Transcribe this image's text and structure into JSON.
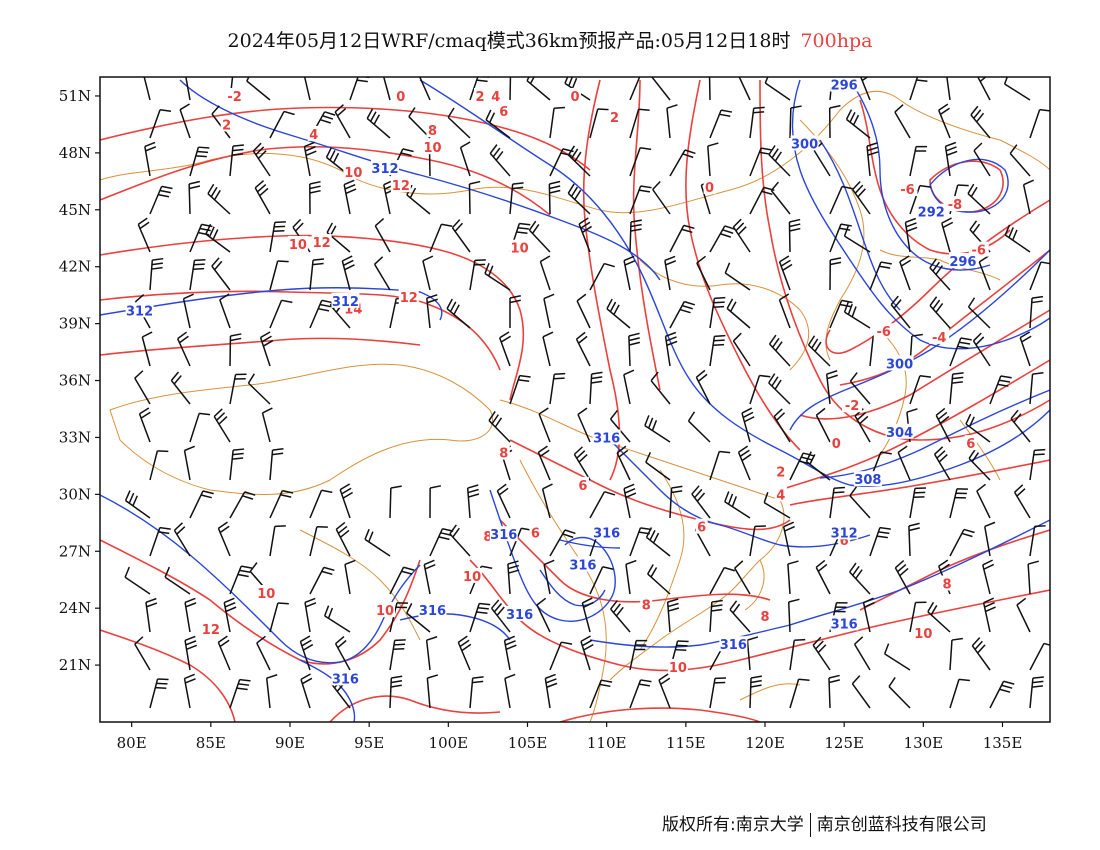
{
  "title": {
    "main": "2024年05月12日WRF/cmaq模式36km预报产品:05月12日18时",
    "level": "700hpa"
  },
  "colors": {
    "temperature": "#e8413e",
    "height": "#2a45d8",
    "coastline": "#d9923a",
    "wind": "#111111",
    "frame": "#111111"
  },
  "axes": {
    "lon_range": [
      78,
      138
    ],
    "lat_range": [
      18,
      52
    ],
    "lon_ticks": [
      {
        "value": 80,
        "label": "80E"
      },
      {
        "value": 85,
        "label": "85E"
      },
      {
        "value": 90,
        "label": "90E"
      },
      {
        "value": 95,
        "label": "95E"
      },
      {
        "value": 100,
        "label": "100E"
      },
      {
        "value": 105,
        "label": "105E"
      },
      {
        "value": 110,
        "label": "110E"
      },
      {
        "value": 115,
        "label": "115E"
      },
      {
        "value": 120,
        "label": "120E"
      },
      {
        "value": 125,
        "label": "125E"
      },
      {
        "value": 130,
        "label": "130E"
      },
      {
        "value": 135,
        "label": "135E"
      }
    ],
    "lat_ticks": [
      {
        "value": 51,
        "label": "51N"
      },
      {
        "value": 48,
        "label": "48N"
      },
      {
        "value": 45,
        "label": "45N"
      },
      {
        "value": 42,
        "label": "42N"
      },
      {
        "value": 39,
        "label": "39N"
      },
      {
        "value": 36,
        "label": "36N"
      },
      {
        "value": 33,
        "label": "33N"
      },
      {
        "value": 30,
        "label": "30N"
      },
      {
        "value": 27,
        "label": "27N"
      },
      {
        "value": 24,
        "label": "24N"
      },
      {
        "value": 21,
        "label": "21N"
      }
    ]
  },
  "temperature_labels": [
    {
      "lon": 86.5,
      "lat": 51,
      "text": "-2"
    },
    {
      "lon": 91.5,
      "lat": 49,
      "text": "4"
    },
    {
      "lon": 86,
      "lat": 49.5,
      "text": "2"
    },
    {
      "lon": 94,
      "lat": 47,
      "text": "10"
    },
    {
      "lon": 97,
      "lat": 46.3,
      "text": "12"
    },
    {
      "lon": 90.5,
      "lat": 43.2,
      "text": "10"
    },
    {
      "lon": 92,
      "lat": 43.3,
      "text": "12"
    },
    {
      "lon": 94,
      "lat": 39.8,
      "text": "14"
    },
    {
      "lon": 97.5,
      "lat": 40.4,
      "text": "12"
    },
    {
      "lon": 99,
      "lat": 49.2,
      "text": "8"
    },
    {
      "lon": 99,
      "lat": 48.3,
      "text": "10"
    },
    {
      "lon": 97,
      "lat": 51,
      "text": "0"
    },
    {
      "lon": 102,
      "lat": 51,
      "text": "2"
    },
    {
      "lon": 103,
      "lat": 51,
      "text": "4"
    },
    {
      "lon": 103.5,
      "lat": 50.2,
      "text": "6"
    },
    {
      "lon": 108,
      "lat": 51,
      "text": "0"
    },
    {
      "lon": 110.5,
      "lat": 49.9,
      "text": "2"
    },
    {
      "lon": 104.5,
      "lat": 43,
      "text": "10"
    },
    {
      "lon": 116.5,
      "lat": 46.2,
      "text": "0"
    },
    {
      "lon": 129,
      "lat": 46.1,
      "text": "-6"
    },
    {
      "lon": 132,
      "lat": 45.3,
      "text": "-8"
    },
    {
      "lon": 133.5,
      "lat": 42.9,
      "text": "-6"
    },
    {
      "lon": 127.5,
      "lat": 38.6,
      "text": "-6"
    },
    {
      "lon": 131,
      "lat": 38.3,
      "text": "-4"
    },
    {
      "lon": 125.5,
      "lat": 34.7,
      "text": "-2"
    },
    {
      "lon": 124.5,
      "lat": 32.7,
      "text": "0"
    },
    {
      "lon": 121,
      "lat": 31.2,
      "text": "2"
    },
    {
      "lon": 121,
      "lat": 30,
      "text": "4"
    },
    {
      "lon": 103.5,
      "lat": 32.2,
      "text": "8"
    },
    {
      "lon": 108.5,
      "lat": 30.5,
      "text": "6"
    },
    {
      "lon": 105.5,
      "lat": 28,
      "text": "6"
    },
    {
      "lon": 102.5,
      "lat": 27.8,
      "text": "8"
    },
    {
      "lon": 101.5,
      "lat": 25.7,
      "text": "10"
    },
    {
      "lon": 96,
      "lat": 23.9,
      "text": "10"
    },
    {
      "lon": 88.5,
      "lat": 24.8,
      "text": "10"
    },
    {
      "lon": 85,
      "lat": 22.9,
      "text": "12"
    },
    {
      "lon": 116,
      "lat": 28.3,
      "text": "6"
    },
    {
      "lon": 112.5,
      "lat": 24.2,
      "text": "8"
    },
    {
      "lon": 120,
      "lat": 23.6,
      "text": "8"
    },
    {
      "lon": 125,
      "lat": 27.6,
      "text": "6"
    },
    {
      "lon": 131.5,
      "lat": 25.3,
      "text": "8"
    },
    {
      "lon": 133,
      "lat": 32.7,
      "text": "6"
    },
    {
      "lon": 130,
      "lat": 22.7,
      "text": "10"
    },
    {
      "lon": 114.5,
      "lat": 20.9,
      "text": "10"
    }
  ],
  "height_labels": [
    {
      "lon": 96,
      "lat": 47.2,
      "text": "312"
    },
    {
      "lon": 80.5,
      "lat": 39.7,
      "text": "312"
    },
    {
      "lon": 93.5,
      "lat": 40.2,
      "text": "312"
    },
    {
      "lon": 122.5,
      "lat": 48.5,
      "text": "300"
    },
    {
      "lon": 125,
      "lat": 51.6,
      "text": "296"
    },
    {
      "lon": 130.5,
      "lat": 44.9,
      "text": "292"
    },
    {
      "lon": 132.5,
      "lat": 42.3,
      "text": "296"
    },
    {
      "lon": 128.5,
      "lat": 36.9,
      "text": "300"
    },
    {
      "lon": 128.5,
      "lat": 33.3,
      "text": "304"
    },
    {
      "lon": 126.5,
      "lat": 30.8,
      "text": "308"
    },
    {
      "lon": 110,
      "lat": 33,
      "text": "316"
    },
    {
      "lon": 110,
      "lat": 28,
      "text": "316"
    },
    {
      "lon": 103.5,
      "lat": 27.9,
      "text": "316"
    },
    {
      "lon": 108.5,
      "lat": 26.3,
      "text": "316"
    },
    {
      "lon": 104.5,
      "lat": 23.7,
      "text": "316"
    },
    {
      "lon": 99,
      "lat": 23.9,
      "text": "316"
    },
    {
      "lon": 118,
      "lat": 22.1,
      "text": "316"
    },
    {
      "lon": 125,
      "lat": 28,
      "text": "312"
    },
    {
      "lon": 125,
      "lat": 23.2,
      "text": "316"
    },
    {
      "lon": 93.5,
      "lat": 20.3,
      "text": "316"
    }
  ],
  "copyright": {
    "owner": "版权所有:南京大学",
    "partner": "南京创蓝科技有限公司"
  }
}
